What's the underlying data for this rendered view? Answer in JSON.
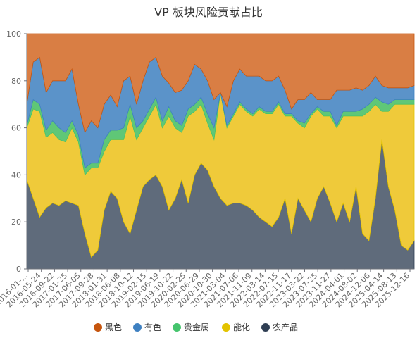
{
  "chart_data": {
    "type": "area",
    "stacked": true,
    "normalized": true,
    "title": "VP 板块风险贡献占比",
    "ylim": [
      0,
      100
    ],
    "yticks": [
      0,
      20,
      40,
      60,
      80,
      100
    ],
    "grid": false,
    "legend_position": "bottom",
    "xtick_labels": [
      "2016-01-…",
      "2016-05-24",
      "2016-09-22",
      "2017-01-25",
      "2017-06-05",
      "2017-09-28",
      "2018-01-31",
      "2018-06-08",
      "2018-10-12",
      "2019-02-15",
      "2019-06-19",
      "2019-10-22",
      "2020-02-25",
      "2020-06-29",
      "2020-10-30",
      "2021-03-04",
      "2021-07-06",
      "2021-11-09",
      "2022-03-14",
      "2022-07-15",
      "2022-11-17",
      "2023-03-22",
      "2023-07-25",
      "2023-11-27",
      "2024-04-01",
      "2024-08-02",
      "2024-12-06",
      "2025-04-14",
      "2025-08-13",
      "2025-12-16"
    ],
    "x": [
      "2016-01",
      "2016-03",
      "2016-05",
      "2016-07",
      "2016-09",
      "2016-11",
      "2017-01",
      "2017-03",
      "2017-05",
      "2017-07",
      "2017-09",
      "2017-11",
      "2018-01",
      "2018-03",
      "2018-05",
      "2018-07",
      "2018-09",
      "2018-11",
      "2019-01",
      "2019-03",
      "2019-05",
      "2019-07",
      "2019-09",
      "2019-11",
      "2020-01",
      "2020-03",
      "2020-05",
      "2020-07",
      "2020-09",
      "2020-11",
      "2021-01",
      "2021-03",
      "2021-05",
      "2021-07",
      "2021-09",
      "2021-11",
      "2022-01",
      "2022-03",
      "2022-05",
      "2022-07",
      "2022-09",
      "2022-11",
      "2023-01",
      "2023-03",
      "2023-05",
      "2023-07",
      "2023-09",
      "2023-11",
      "2024-01",
      "2024-03",
      "2024-05",
      "2024-07",
      "2024-09",
      "2024-11",
      "2025-01",
      "2025-03",
      "2025-05",
      "2025-07",
      "2025-09",
      "2025-11",
      "2026-01"
    ],
    "series": [
      {
        "name": "农产品",
        "color": "#2f3e53",
        "fill": "#5f6b7b",
        "values": [
          38,
          30,
          22,
          26,
          28,
          27,
          29,
          28,
          27,
          15,
          5,
          8,
          25,
          33,
          30,
          20,
          15,
          25,
          35,
          38,
          40,
          35,
          25,
          30,
          38,
          28,
          40,
          45,
          42,
          35,
          30,
          27,
          28,
          28,
          27,
          25,
          22,
          20,
          18,
          22,
          30,
          15,
          30,
          25,
          20,
          30,
          35,
          28,
          20,
          28,
          20,
          35,
          15,
          12,
          30,
          55,
          35,
          25,
          10,
          8,
          12
        ]
      },
      {
        "name": "能化",
        "color": "#e3c300",
        "fill": "#efca3a",
        "values": [
          22,
          38,
          45,
          30,
          30,
          28,
          25,
          32,
          27,
          25,
          38,
          35,
          25,
          22,
          25,
          35,
          50,
          30,
          25,
          27,
          30,
          25,
          40,
          30,
          20,
          37,
          27,
          25,
          20,
          20,
          45,
          33,
          37,
          42,
          40,
          40,
          46,
          46,
          48,
          48,
          35,
          50,
          32,
          35,
          45,
          38,
          30,
          37,
          40,
          37,
          45,
          30,
          50,
          55,
          40,
          12,
          32,
          45,
          60,
          62,
          58
        ]
      },
      {
        "name": "贵金属",
        "color": "#45c46d",
        "fill": "#5fc777",
        "values": [
          1,
          4,
          3,
          3,
          5,
          5,
          4,
          3,
          3,
          3,
          2,
          2,
          5,
          4,
          4,
          5,
          5,
          5,
          3,
          3,
          3,
          3,
          4,
          3,
          3,
          3,
          3,
          3,
          4,
          5,
          0,
          1,
          1,
          1,
          1,
          1,
          1,
          1,
          1,
          1,
          1,
          1,
          1,
          2,
          1,
          1,
          2,
          2,
          1,
          2,
          2,
          2,
          3,
          3,
          3,
          4,
          3,
          2,
          2,
          2,
          2
        ]
      },
      {
        "name": "有色",
        "color": "#3e80c1",
        "fill": "#5b93c9",
        "values": [
          9,
          16,
          20,
          16,
          17,
          20,
          22,
          22,
          13,
          15,
          18,
          15,
          15,
          15,
          10,
          20,
          12,
          10,
          17,
          20,
          17,
          19,
          10,
          12,
          15,
          12,
          17,
          12,
          14,
          12,
          0,
          8,
          14,
          14,
          14,
          16,
          13,
          13,
          13,
          11,
          10,
          2,
          9,
          10,
          9,
          3,
          5,
          5,
          15,
          9,
          9,
          10,
          8,
          8,
          9,
          7,
          7,
          5,
          5,
          5,
          6
        ]
      },
      {
        "name": "黑色",
        "color": "#c6550e",
        "fill": "#d97e44",
        "values": [
          30,
          12,
          10,
          25,
          20,
          20,
          20,
          15,
          30,
          42,
          37,
          40,
          30,
          26,
          31,
          20,
          18,
          30,
          20,
          12,
          10,
          18,
          21,
          25,
          24,
          20,
          13,
          15,
          20,
          28,
          25,
          31,
          20,
          15,
          18,
          18,
          18,
          20,
          20,
          18,
          24,
          32,
          28,
          28,
          25,
          28,
          28,
          28,
          24,
          24,
          24,
          23,
          24,
          22,
          18,
          22,
          23,
          23,
          23,
          23,
          22
        ]
      }
    ]
  }
}
